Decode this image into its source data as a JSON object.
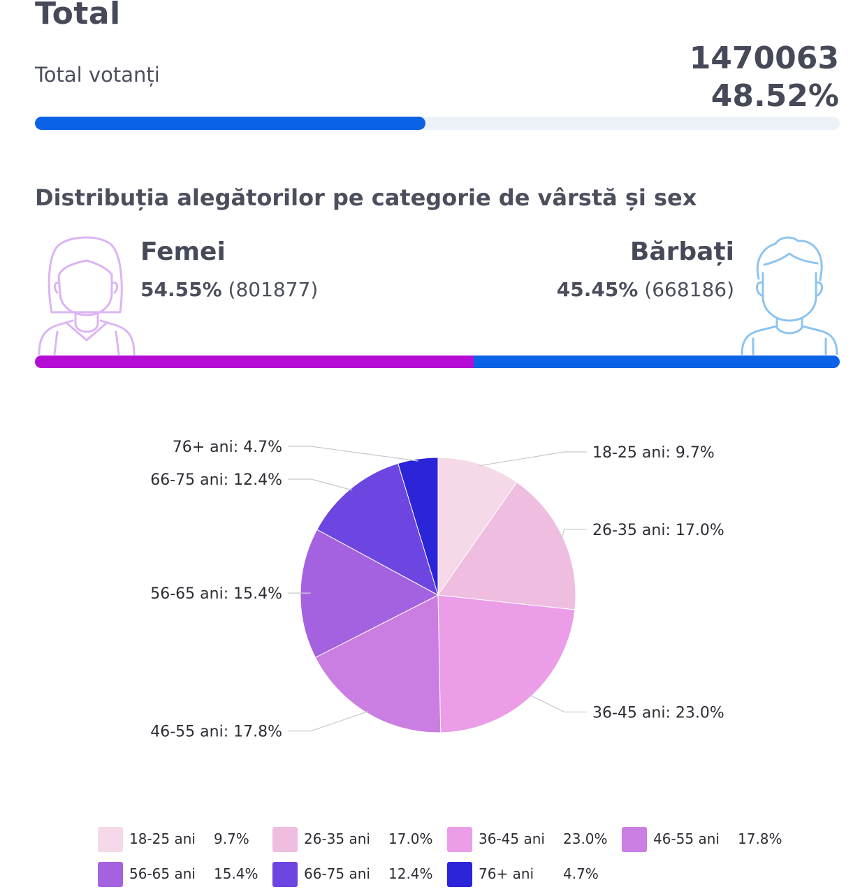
{
  "header": {
    "title": "Total",
    "voters_label": "Total votanți",
    "voters_count": "1470063",
    "voters_percent": "48.52%",
    "turnout_fraction": 0.4852
  },
  "distribution": {
    "title": "Distribuția alegătorilor pe categorie de vârstă și sex"
  },
  "gender": {
    "female": {
      "label": "Femei",
      "percent": "54.55%",
      "count": "(801877)",
      "fraction": 0.5455,
      "color": "#b40cd4"
    },
    "male": {
      "label": "Bărbați",
      "percent": "45.45%",
      "count": "(668186)",
      "fraction": 0.4545,
      "color": "#0a63e6"
    },
    "icons": {
      "female": "woman-avatar-icon",
      "male": "man-avatar-icon"
    },
    "icon_colors": {
      "female": "#dcb4f4",
      "male": "#8ec4f0"
    }
  },
  "chart_data": {
    "type": "pie",
    "categories": [
      "18-25 ani",
      "26-35 ani",
      "36-45 ani",
      "46-55 ani",
      "56-65 ani",
      "66-75 ani",
      "76+ ani"
    ],
    "values": [
      9.7,
      17.0,
      23.0,
      17.8,
      15.4,
      12.4,
      4.7
    ],
    "value_labels": [
      "9.7%",
      "17.0%",
      "23.0%",
      "17.8%",
      "15.4%",
      "12.4%",
      "4.7%"
    ],
    "slice_labels": [
      "18-25 ani: 9.7%",
      "26-35 ani: 17.0%",
      "36-45 ani: 23.0%",
      "46-55 ani: 17.8%",
      "56-65 ani: 15.4%",
      "66-75 ani: 12.4%",
      "76+ ani: 4.7%"
    ],
    "colors": [
      "#f5d9e8",
      "#efbde0",
      "#eb9de8",
      "#cb7ee2",
      "#a562e0",
      "#6d45e0",
      "#2c24d8"
    ],
    "start_angle": "top",
    "direction": "clockwise",
    "legend_position": "bottom"
  }
}
